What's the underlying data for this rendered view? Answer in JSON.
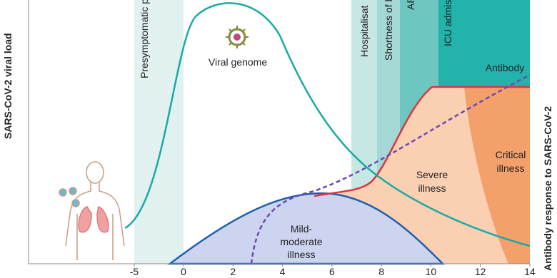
{
  "diagram": {
    "y_axis_label": "SARS-CoV-2 viral load",
    "y2_axis_label": "Antibody response to SARS-CoV-2",
    "x_ticks": [
      -5,
      0,
      2,
      4,
      6,
      8,
      10,
      12,
      14
    ],
    "phases": [
      "Presymptomatic ph",
      "Hospitalisat",
      "Shortness of bre",
      "AR",
      "ICU admiss"
    ],
    "labels": {
      "viral_genome": "Viral genome",
      "antibody": "Antibody",
      "mild": [
        "Mild-",
        "moderate",
        "illness"
      ],
      "severe": [
        "Severe",
        "illness"
      ],
      "critical": [
        "Critical",
        "illness"
      ]
    }
  }
}
